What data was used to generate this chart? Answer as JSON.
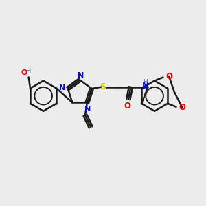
{
  "bg_color": "#ececec",
  "atom_colors": {
    "N": "#0000ee",
    "O": "#ee0000",
    "S": "#cccc00",
    "C": "#1a1a1a",
    "H": "#507080"
  },
  "bond_color": "#1a1a1a",
  "bond_width": 1.8
}
